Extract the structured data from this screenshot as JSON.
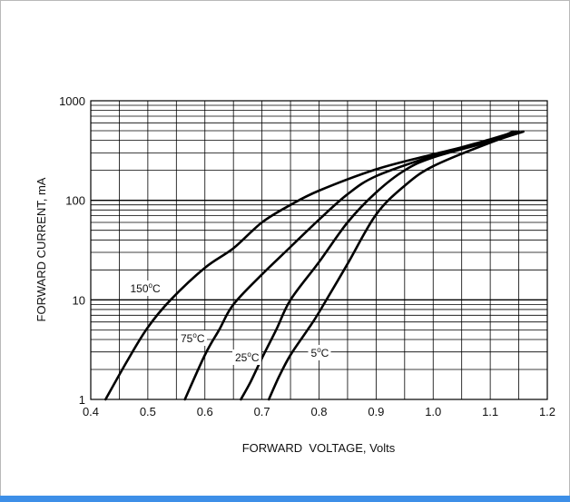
{
  "chart_data": {
    "type": "line",
    "title": "",
    "xlabel": "FORWARD  VOLTAGE, Volts",
    "ylabel": "FORWARD CURRENT, mA",
    "x_scale": "linear",
    "y_scale": "log",
    "xlim": [
      0.4,
      1.2
    ],
    "ylim": [
      1,
      1000
    ],
    "x_ticks": [
      "0.4",
      "0.5",
      "0.6",
      "0.7",
      "0.8",
      "0.9",
      "1.0",
      "1.1",
      "1.2"
    ],
    "y_ticks": [
      "1",
      "10",
      "100",
      "1000"
    ],
    "grid": true,
    "legend": "none",
    "series": [
      {
        "name": "150°C",
        "label_main": "150",
        "label_unit": "C",
        "points": [
          [
            0.426,
            1
          ],
          [
            0.465,
            2.5
          ],
          [
            0.5,
            5.3
          ],
          [
            0.54,
            10
          ],
          [
            0.6,
            21
          ],
          [
            0.65,
            33
          ],
          [
            0.7,
            60
          ],
          [
            0.75,
            90
          ],
          [
            0.8,
            125
          ],
          [
            0.9,
            205
          ],
          [
            1.0,
            290
          ],
          [
            1.1,
            400
          ],
          [
            1.14,
            490
          ]
        ]
      },
      {
        "name": "75°C",
        "label_main": "75",
        "label_unit": "C",
        "points": [
          [
            0.565,
            1
          ],
          [
            0.6,
            2.8
          ],
          [
            0.625,
            5
          ],
          [
            0.65,
            9
          ],
          [
            0.7,
            18
          ],
          [
            0.75,
            34
          ],
          [
            0.8,
            64
          ],
          [
            0.85,
            115
          ],
          [
            0.9,
            175
          ],
          [
            1.0,
            280
          ],
          [
            1.1,
            410
          ],
          [
            1.145,
            490
          ]
        ]
      },
      {
        "name": "25°C",
        "label_main": "25",
        "label_unit": "C",
        "points": [
          [
            0.663,
            1
          ],
          [
            0.68,
            1.5
          ],
          [
            0.7,
            2.6
          ],
          [
            0.725,
            5
          ],
          [
            0.75,
            10
          ],
          [
            0.8,
            24
          ],
          [
            0.85,
            60
          ],
          [
            0.9,
            120
          ],
          [
            0.95,
            200
          ],
          [
            1.0,
            270
          ],
          [
            1.1,
            390
          ],
          [
            1.15,
            490
          ]
        ]
      },
      {
        "name": "5°C",
        "label_main": "5",
        "label_unit": "C",
        "points": [
          [
            0.712,
            1
          ],
          [
            0.73,
            1.7
          ],
          [
            0.75,
            2.8
          ],
          [
            0.78,
            5
          ],
          [
            0.8,
            7.5
          ],
          [
            0.85,
            23
          ],
          [
            0.9,
            72
          ],
          [
            0.95,
            140
          ],
          [
            1.0,
            220
          ],
          [
            1.1,
            380
          ],
          [
            1.158,
            490
          ]
        ]
      }
    ]
  },
  "colors": {
    "curve": "#000000",
    "grid": "#000000",
    "frame": "#b9b9b9",
    "accent": "#3d8fe8"
  }
}
